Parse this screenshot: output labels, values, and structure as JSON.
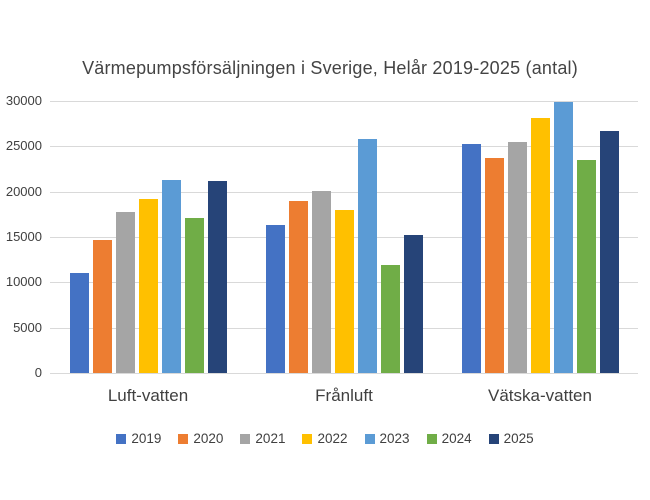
{
  "chart_data": {
    "type": "bar",
    "title": "Värmepumpsförsäljningen i Sverige, Helår 2019-2025 (antal)",
    "categories": [
      "Luft-vatten",
      "Frånluft",
      "Vätska-vatten"
    ],
    "series": [
      {
        "name": "2019",
        "color": "#4472C4",
        "values": [
          11000,
          16300,
          25300
        ]
      },
      {
        "name": "2020",
        "color": "#ED7D31",
        "values": [
          14700,
          19000,
          23700
        ]
      },
      {
        "name": "2021",
        "color": "#A5A5A5",
        "values": [
          17800,
          20100,
          25500
        ]
      },
      {
        "name": "2022",
        "color": "#FFC000",
        "values": [
          19200,
          18000,
          28100
        ]
      },
      {
        "name": "2023",
        "color": "#5B9BD5",
        "values": [
          21300,
          25800,
          29900
        ]
      },
      {
        "name": "2024",
        "color": "#70AD47",
        "values": [
          17100,
          11900,
          23500
        ]
      },
      {
        "name": "2025",
        "color": "#264478",
        "values": [
          21200,
          15200,
          26700
        ]
      }
    ],
    "xlabel": "",
    "ylabel": "",
    "y_axis": {
      "min": 0,
      "max": 30000,
      "tick_step": 5000,
      "ticks": [
        0,
        5000,
        10000,
        15000,
        20000,
        25000,
        30000
      ],
      "tick_labels": [
        "0",
        "5000",
        "10000",
        "15000",
        "20000",
        "25000",
        "30000"
      ]
    },
    "grid": true,
    "legend_position": "bottom",
    "colors": {
      "gridline": "#D9D9D9",
      "axis_text": "#404040",
      "title_text": "#444444",
      "background": "#FFFFFF"
    }
  }
}
